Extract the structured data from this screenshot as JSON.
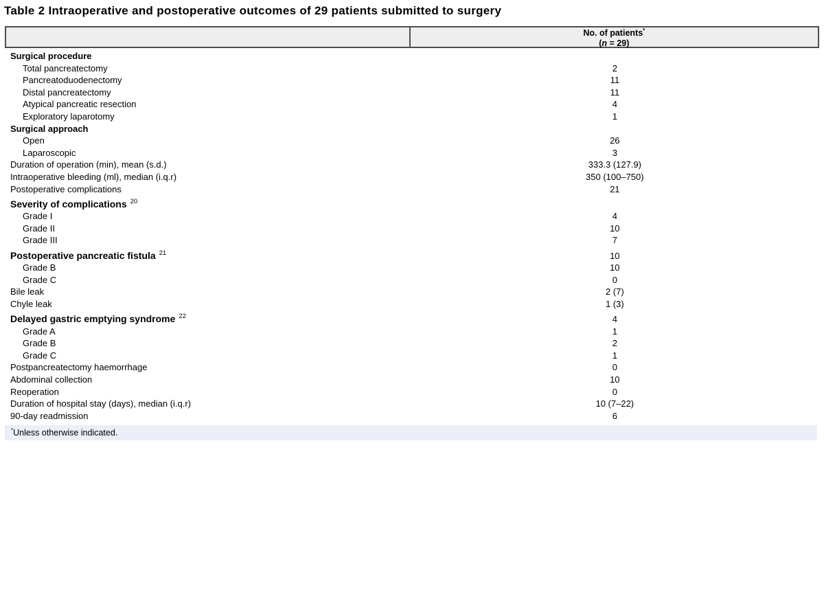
{
  "title": "Table 2 Intraoperative and postoperative outcomes of 29 patients submitted to surgery",
  "header": {
    "col1": "",
    "col2": {
      "line1": "No. of patients",
      "sup": "*",
      "open": "(",
      "n": "n",
      "rest": " = 29)"
    }
  },
  "rows": [
    {
      "label": "Surgical procedure",
      "bold": true,
      "indent": 0,
      "value": ""
    },
    {
      "label": "Total pancreatectomy",
      "bold": false,
      "indent": 1,
      "value": "2"
    },
    {
      "label": "Pancreatoduodenectomy",
      "bold": false,
      "indent": 1,
      "value": "11"
    },
    {
      "label": "Distal pancreatectomy",
      "bold": false,
      "indent": 1,
      "value": "11"
    },
    {
      "label": "Atypical pancreatic resection",
      "bold": false,
      "indent": 1,
      "value": "4"
    },
    {
      "label": "Exploratory laparotomy",
      "bold": false,
      "indent": 1,
      "value": "1"
    },
    {
      "label": "Surgical approach",
      "bold": true,
      "indent": 0,
      "value": ""
    },
    {
      "label": "Open",
      "bold": false,
      "indent": 1,
      "value": "26"
    },
    {
      "label": "Laparoscopic",
      "bold": false,
      "indent": 1,
      "value": "3"
    },
    {
      "label": "Duration of operation (min), mean (s.d.)",
      "bold": false,
      "indent": 0,
      "value": "333.3 (127.9)"
    },
    {
      "label": "Intraoperative bleeding (ml), median (i.q.r)",
      "bold": false,
      "indent": 0,
      "value": "350 (100–750)"
    },
    {
      "label": "Postoperative complications",
      "bold": false,
      "indent": 0,
      "value": "21"
    },
    {
      "label": "Severity of complications",
      "sup": "20",
      "bold": true,
      "indent": 0,
      "value": ""
    },
    {
      "label": "Grade I",
      "bold": false,
      "indent": 1,
      "value": "4"
    },
    {
      "label": "Grade II",
      "bold": false,
      "indent": 1,
      "value": "10"
    },
    {
      "label": "Grade III",
      "bold": false,
      "indent": 1,
      "value": "7"
    },
    {
      "label": "Postoperative pancreatic fistula",
      "sup": "21",
      "bold": true,
      "indent": 0,
      "value": "10"
    },
    {
      "label": "Grade B",
      "bold": false,
      "indent": 1,
      "value": "10"
    },
    {
      "label": "Grade C",
      "bold": false,
      "indent": 1,
      "value": "0"
    },
    {
      "label": "Bile leak",
      "bold": false,
      "indent": 0,
      "value": "2 (7)"
    },
    {
      "label": "Chyle leak",
      "bold": false,
      "indent": 0,
      "value": "1 (3)"
    },
    {
      "label": "Delayed gastric emptying syndrome",
      "sup": "22",
      "bold": true,
      "indent": 0,
      "value": "4"
    },
    {
      "label": "Grade A",
      "bold": false,
      "indent": 1,
      "value": "1"
    },
    {
      "label": "Grade B",
      "bold": false,
      "indent": 1,
      "value": "2"
    },
    {
      "label": "Grade C",
      "bold": false,
      "indent": 1,
      "value": "1"
    },
    {
      "label": "Postpancreatectomy haemorrhage",
      "bold": false,
      "indent": 0,
      "value": "0"
    },
    {
      "label": "Abdominal collection",
      "bold": false,
      "indent": 0,
      "value": "10"
    },
    {
      "label": "Reoperation",
      "bold": false,
      "indent": 0,
      "value": "0"
    },
    {
      "label": "Duration of hospital stay (days), median (i.q.r)",
      "bold": false,
      "indent": 0,
      "value": "10 (7–22)"
    },
    {
      "label": "90-day readmission",
      "bold": false,
      "indent": 0,
      "value": "6"
    }
  ],
  "footnote": {
    "sup": "*",
    "text": "Unless otherwise indicated."
  },
  "colors": {
    "header_bg": "#eeeeee",
    "border": "#4d4d4d",
    "footnote_bg": "#eceef8"
  }
}
